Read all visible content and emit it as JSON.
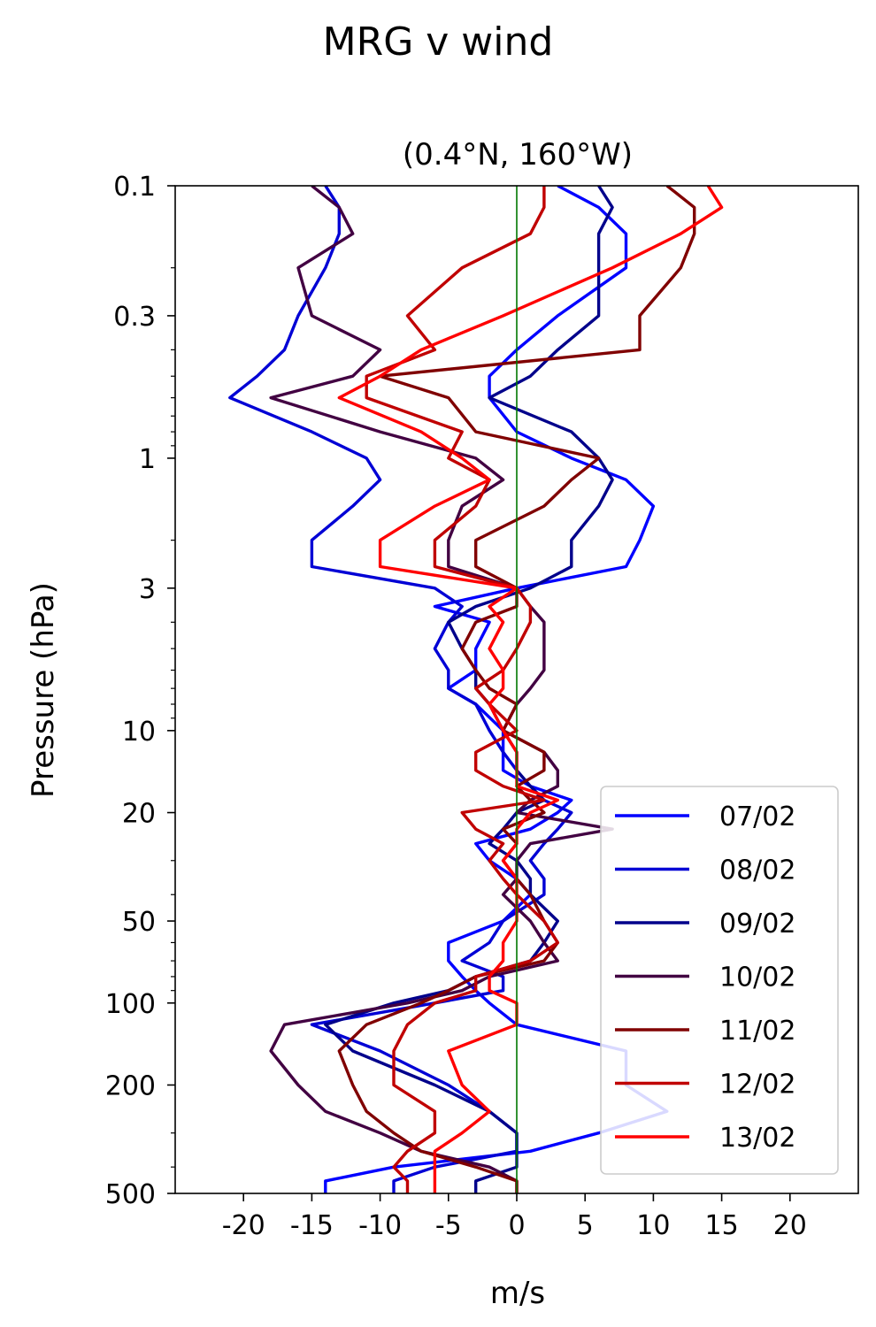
{
  "suptitle": "MRG v wind",
  "chart_data": {
    "type": "line",
    "title": "(0.4°N, 160°W)",
    "xlabel": "m/s",
    "ylabel": "Pressure (hPa)",
    "xlim": [
      -25,
      25
    ],
    "ylim": [
      500,
      0.1
    ],
    "yscale": "log",
    "xticks": [
      -20,
      -15,
      -10,
      -5,
      0,
      5,
      10,
      15,
      20
    ],
    "xtick_labels": [
      "-20",
      "-15",
      "-10",
      "-5",
      "0",
      "5",
      "10",
      "15",
      "20"
    ],
    "yticks": [
      0.1,
      0.3,
      1,
      3,
      10,
      20,
      50,
      100,
      200,
      500
    ],
    "ytick_labels": [
      "0.1",
      "0.3",
      "1",
      "3",
      "10",
      "20",
      "50",
      "100",
      "200",
      "500"
    ],
    "zero_line_color": "#007700",
    "grid": false,
    "legend_position": "lower-right",
    "pressure_levels": [
      0.1,
      0.12,
      0.15,
      0.2,
      0.3,
      0.4,
      0.5,
      0.6,
      0.8,
      1.0,
      1.2,
      1.5,
      2.0,
      2.5,
      3.0,
      3.5,
      4.0,
      5.0,
      6.0,
      7.0,
      8.0,
      10,
      12,
      14,
      16,
      18,
      20,
      23,
      26,
      30,
      35,
      40,
      50,
      60,
      70,
      80,
      90,
      100,
      120,
      150,
      200,
      250,
      300,
      350,
      400,
      450,
      500
    ],
    "series": [
      {
        "name": "07/02",
        "color": "#0000ff",
        "values": [
          3,
          6,
          8,
          8,
          3,
          0,
          -2,
          -2,
          0,
          4,
          8,
          10,
          9,
          8,
          0,
          -6,
          -2,
          -3,
          -3,
          -5,
          -3,
          -1,
          -1,
          -1,
          1,
          4,
          3,
          1,
          -3,
          -2,
          0,
          1,
          -1,
          -5,
          -5,
          -4,
          -3,
          -2,
          0,
          8,
          8,
          11,
          6,
          1,
          -9,
          -14,
          -14
        ]
      },
      {
        "name": "08/02",
        "color": "#0000d5",
        "values": [
          -14,
          -13,
          -13,
          -14,
          -16,
          -17,
          -19,
          -21,
          -15,
          -11,
          -10,
          -12,
          -15,
          -15,
          -6,
          -4,
          -5,
          -6,
          -5,
          -5,
          -3,
          -2,
          -1,
          0,
          1,
          2,
          4,
          3,
          2,
          1,
          2,
          2,
          -1,
          -2,
          -4,
          -1,
          -1,
          -6,
          -15,
          -10,
          -5,
          -2,
          0,
          0,
          -6,
          -9,
          -9
        ]
      },
      {
        "name": "09/02",
        "color": "#00008b",
        "values": [
          6,
          7,
          6,
          6,
          6,
          3,
          1,
          -2,
          4,
          6,
          7,
          6,
          4,
          4,
          1,
          -3,
          -5,
          -4,
          -3,
          -3,
          -2,
          -1,
          0,
          0,
          1,
          2,
          0,
          -1,
          -2,
          0,
          1,
          1,
          3,
          2,
          1,
          -3,
          -5,
          -9,
          -14,
          -12,
          -6,
          -2,
          0,
          0,
          0,
          -3,
          -3
        ]
      },
      {
        "name": "10/02",
        "color": "#420042",
        "values": [
          -15,
          -13,
          -12,
          -16,
          -15,
          -10,
          -12,
          -18,
          -10,
          -3,
          -1,
          -4,
          -5,
          -5,
          0,
          1,
          2,
          2,
          2,
          1,
          0,
          -1,
          2,
          3,
          3,
          1,
          0,
          7,
          1,
          0,
          0,
          -1,
          1,
          2,
          3,
          -2,
          -4,
          -8,
          -17,
          -18,
          -16,
          -14,
          -10,
          -7,
          -2,
          0,
          0
        ]
      },
      {
        "name": "11/02",
        "color": "#800000",
        "values": [
          11,
          13,
          13,
          12,
          9,
          9,
          -10,
          -5,
          -3,
          6,
          4,
          2,
          -3,
          -3,
          0,
          0,
          -3,
          -4,
          -3,
          -2,
          0,
          -1,
          2,
          2,
          0,
          1,
          2,
          -1,
          0,
          -1,
          0,
          1,
          2,
          3,
          2,
          -3,
          -5,
          -7,
          -11,
          -13,
          -12,
          -11,
          -9,
          -7,
          -3,
          0,
          0
        ]
      },
      {
        "name": "12/02",
        "color": "#c00000",
        "values": [
          2,
          2,
          1,
          -4,
          -8,
          -6,
          -11,
          -11,
          -4,
          -5,
          -2,
          -3,
          -6,
          -6,
          0,
          1,
          1,
          0,
          -1,
          -3,
          -2,
          0,
          -3,
          -3,
          -1,
          2,
          -4,
          -3,
          -1,
          -2,
          -1,
          0,
          2,
          3,
          1,
          -3,
          -3,
          -6,
          -8,
          -9,
          -9,
          -6,
          -6,
          -8,
          -9,
          -8,
          -8
        ]
      },
      {
        "name": "13/02",
        "color": "#ff0000",
        "values": [
          14,
          15,
          12,
          7,
          -1,
          -7,
          -10,
          -13,
          -7,
          -4,
          -2,
          -6,
          -10,
          -10,
          0,
          -2,
          -1,
          -2,
          -1,
          -1,
          -2,
          -1,
          0,
          0,
          0,
          3,
          1,
          0,
          0,
          -1,
          0,
          0,
          0,
          -1,
          -1,
          -2,
          -2,
          0,
          0,
          -5,
          -4,
          -2,
          -4,
          -6,
          -6,
          -6,
          -6
        ]
      }
    ]
  }
}
